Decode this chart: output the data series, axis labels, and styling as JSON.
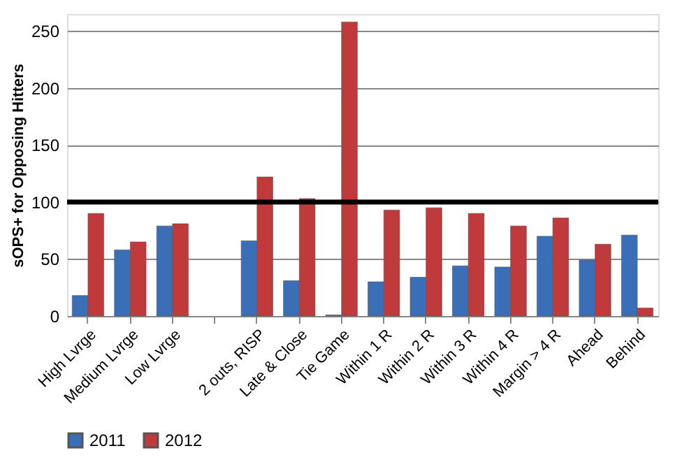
{
  "chart_data": {
    "type": "bar",
    "ylabel": "sOPS+ for Opposing Hitters",
    "categories": [
      "High Lvrge",
      "Medium Lvrge",
      "Low Lvrge",
      null,
      "2 outs, RISP",
      "Late & Close",
      "Tie Game",
      "Within 1 R",
      "Within 2 R",
      "Within 3 R",
      "Within 4 R",
      "Margin > 4 R",
      "Ahead",
      "Behind"
    ],
    "series": [
      {
        "name": "2011",
        "color": "#3a6fb8",
        "values": [
          18,
          58,
          79,
          null,
          66,
          31,
          1,
          30,
          34,
          44,
          43,
          70,
          49,
          71
        ]
      },
      {
        "name": "2012",
        "color": "#c0393b",
        "values": [
          90,
          65,
          81,
          null,
          122,
          103,
          258,
          93,
          95,
          90,
          79,
          86,
          63,
          7
        ]
      }
    ],
    "ylim": [
      0,
      265
    ],
    "yticks": [
      0,
      50,
      100,
      150,
      200,
      250
    ],
    "grid": "y",
    "legend": "bottom",
    "ref_lines": [
      {
        "axis": "y",
        "value": 100,
        "color": "#000000"
      }
    ]
  }
}
